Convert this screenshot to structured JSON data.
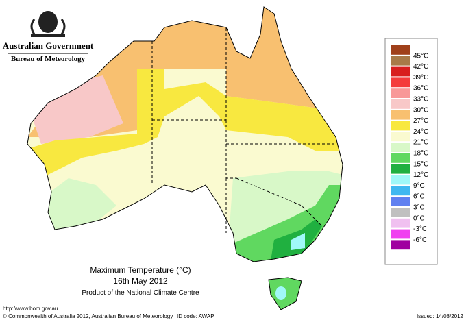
{
  "header": {
    "agency": "Australian Government",
    "bureau": "Bureau of Meteorology"
  },
  "map": {
    "title": "Maximum Temperature (°C)",
    "date": "16th May 2012",
    "product": "Product of the National Climate Centre"
  },
  "legend": {
    "colors": [
      "#a0401a",
      "#a87a48",
      "#d81e1e",
      "#f43c3c",
      "#f89898",
      "#f8c8c8",
      "#f8c070",
      "#f8e840",
      "#fafad0",
      "#d8f8c8",
      "#60d860",
      "#20b040",
      "#a0f8f8",
      "#40b8f0",
      "#6080f0",
      "#c0c0c0",
      "#f0c0f0",
      "#f040f0",
      "#a000a0"
    ],
    "labels": [
      "45°C",
      "42°C",
      "39°C",
      "36°C",
      "33°C",
      "30°C",
      "27°C",
      "24°C",
      "21°C",
      "18°C",
      "15°C",
      "12°C",
      "9°C",
      "6°C",
      "3°C",
      "0°C",
      "-3°C",
      "-6°C"
    ]
  },
  "footer": {
    "url": "http://www.bom.gov.au",
    "copyright": "© Commonwealth of Australia 2012, Australian Bureau of Meteorology",
    "id": "ID code: AWAP",
    "issued": "Issued: 14/08/2012"
  }
}
